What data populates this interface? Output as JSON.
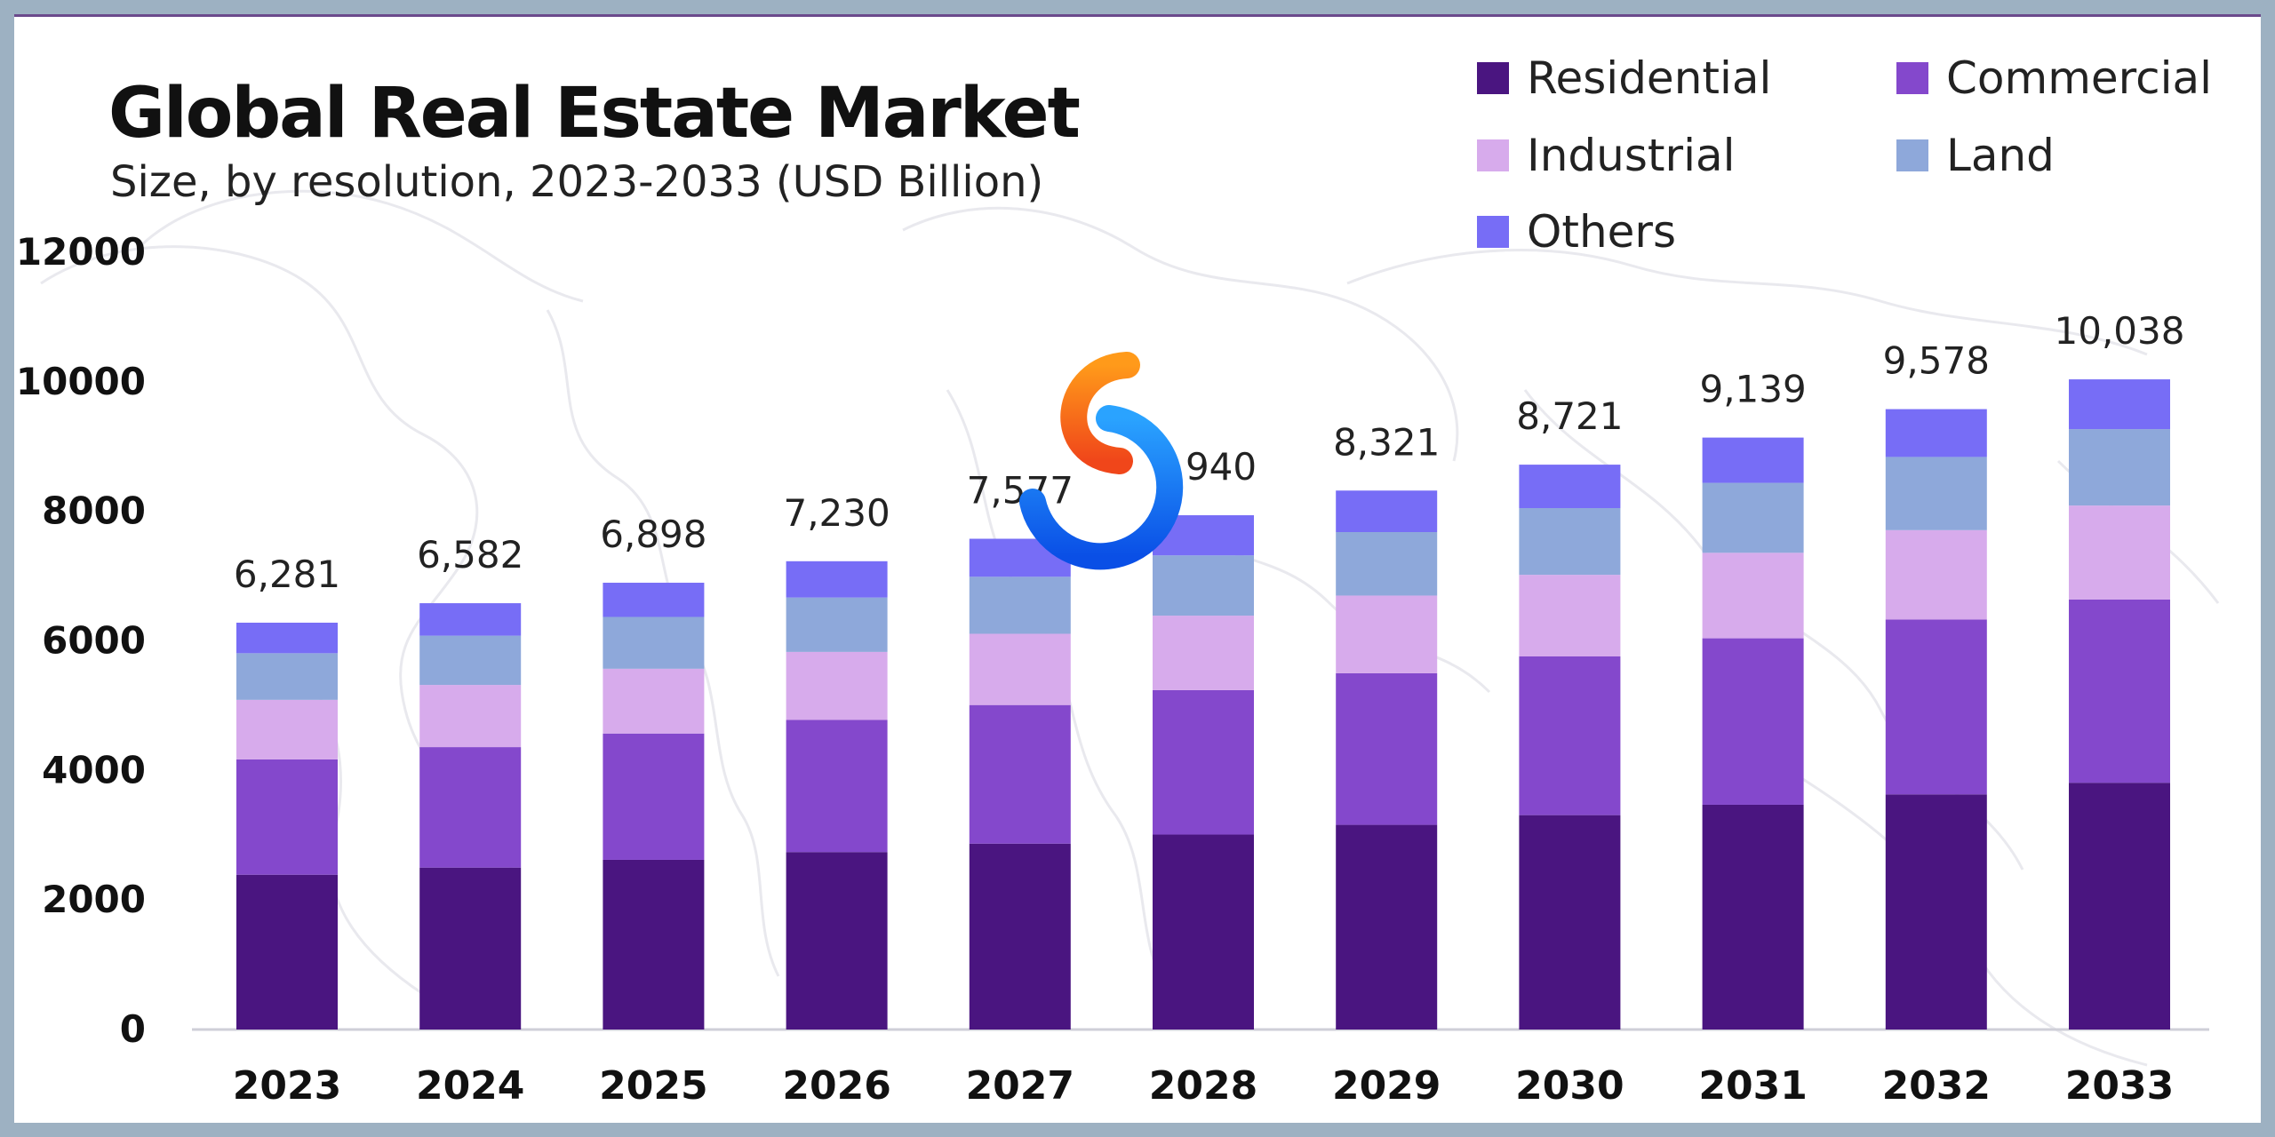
{
  "chart_data": {
    "type": "bar",
    "stacked": true,
    "title": "Global Real Estate Market",
    "subtitle": "Size, by resolution, 2023-2033 (USD Billion)",
    "categories": [
      "2023",
      "2024",
      "2025",
      "2026",
      "2027",
      "2028",
      "2029",
      "2030",
      "2031",
      "2032",
      "2033"
    ],
    "totals": [
      "6,281",
      "6,582",
      "6,898",
      "7,230",
      "7,577",
      "7,940",
      "8,321",
      "8,721",
      "9,139",
      "9,578",
      "10,038"
    ],
    "series": [
      {
        "name": "Residential",
        "color": "#4a1580",
        "values": [
          2390,
          2500,
          2620,
          2740,
          2870,
          3010,
          3160,
          3310,
          3470,
          3630,
          3810
        ]
      },
      {
        "name": "Commercial",
        "color": "#8448cc",
        "values": [
          1780,
          1860,
          1950,
          2040,
          2140,
          2230,
          2340,
          2450,
          2570,
          2700,
          2830
        ]
      },
      {
        "name": "Industrial",
        "color": "#d7abec",
        "values": [
          920,
          960,
          1000,
          1050,
          1100,
          1150,
          1200,
          1260,
          1320,
          1380,
          1450
        ]
      },
      {
        "name": "Land",
        "color": "#8ea8da",
        "values": [
          720,
          760,
          800,
          840,
          880,
          930,
          980,
          1030,
          1080,
          1130,
          1180
        ]
      },
      {
        "name": "Others",
        "color": "#776df6",
        "values": [
          471,
          502,
          528,
          560,
          587,
          620,
          641,
          671,
          699,
          738,
          768
        ]
      }
    ],
    "yticks": [
      "0",
      "2000",
      "4000",
      "6000",
      "8000",
      "10000",
      "12000"
    ],
    "ylim": [
      0,
      12000
    ],
    "grid": false,
    "legend_position": "top-right"
  },
  "icons": {
    "watermark": "logo-ring-icon"
  }
}
